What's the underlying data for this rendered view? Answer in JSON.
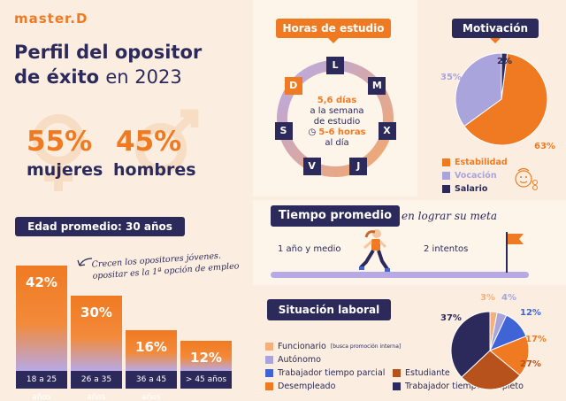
{
  "brand": "master.D",
  "title": {
    "line1": "Perfil del opositor",
    "line2a": "de éxito",
    "line2b": "en 2023"
  },
  "gender": {
    "women_pct": "55%",
    "women_label": "mujeres",
    "men_pct": "45%",
    "men_label": "hombres"
  },
  "age": {
    "heading": "Edad promedio: 30 años",
    "note_line1": "Crecen los opositores jóvenes.",
    "note_line2": "opositar es la 1ª opción de empleo"
  },
  "study": {
    "heading": "Horas de estudio",
    "days": [
      "L",
      "M",
      "X",
      "J",
      "V",
      "S",
      "D"
    ],
    "line1": "5,6 días",
    "line2": "a la semana",
    "line3": "de estudio",
    "line4": "5-6 horas",
    "line5": "al día"
  },
  "motivation": {
    "heading": "Motivación"
  },
  "tiempo": {
    "heading": "Tiempo promedio",
    "subheading": "en lograr su meta",
    "marker1": "1 año y medio",
    "marker2": "2 intentos"
  },
  "situacion": {
    "heading": "Situación laboral",
    "funcionario_note": "[busca promoción interna]"
  },
  "colors": {
    "orange": "#f07a22",
    "navy": "#2c2a5a",
    "lavender": "#a9a4dc",
    "blue": "#3f64d6",
    "rust": "#b8521c",
    "peach": "#f5b07a"
  },
  "chart_data": [
    {
      "type": "bar",
      "categories": [
        "18 a 25 años",
        "26 a 35 años",
        "36 a 45 años",
        "> 45 años"
      ],
      "values": [
        42,
        30,
        16,
        12
      ],
      "labels": [
        "42%",
        "30%",
        "16%",
        "12%"
      ],
      "title": "Edad promedio: 30 años",
      "ylim": [
        0,
        45
      ]
    },
    {
      "type": "pie",
      "title": "Motivación",
      "categories": [
        "Estabilidad",
        "Vocación",
        "Salario"
      ],
      "values": [
        63,
        35,
        2
      ],
      "labels": [
        "63%",
        "35%",
        "2%"
      ],
      "colors": [
        "#f07a22",
        "#a9a4dc",
        "#2c2a5a"
      ]
    },
    {
      "type": "pie",
      "title": "Situación laboral",
      "categories": [
        "Funcionario",
        "Autónomo",
        "Trabajador tiempo parcial",
        "Desempleado",
        "Estudiante",
        "Trabajador tiempo completo"
      ],
      "values": [
        3,
        4,
        12,
        17,
        27,
        37
      ],
      "labels": [
        "3%",
        "4%",
        "12%",
        "17%",
        "27%",
        "37%"
      ],
      "colors": [
        "#f5b07a",
        "#a9a4dc",
        "#3f64d6",
        "#f07a22",
        "#b8521c",
        "#2c2a5a"
      ]
    }
  ]
}
